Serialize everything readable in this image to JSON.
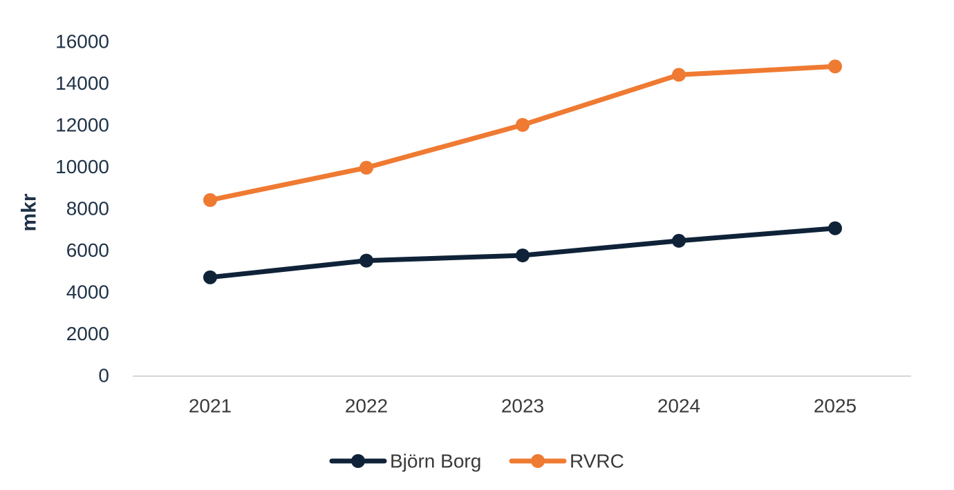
{
  "chart_data": {
    "type": "line",
    "title": "",
    "xlabel": "",
    "ylabel": "mkr",
    "categories": [
      "2021",
      "2022",
      "2023",
      "2024",
      "2025"
    ],
    "yticks": [
      "0",
      "2000",
      "4000",
      "6000",
      "8000",
      "10000",
      "12000",
      "14000",
      "16000"
    ],
    "ylim": [
      0,
      16000
    ],
    "grid": false,
    "legend_position": "bottom",
    "series": [
      {
        "name": "Björn Borg",
        "color": "#0f2238",
        "values": [
          4700,
          5500,
          5750,
          6450,
          7050
        ]
      },
      {
        "name": "RVRC",
        "color": "#ef7a32",
        "values": [
          8400,
          9950,
          12000,
          14400,
          14800
        ]
      }
    ],
    "axis_color": "#d6d6d6",
    "text_color": "#1f3247"
  }
}
